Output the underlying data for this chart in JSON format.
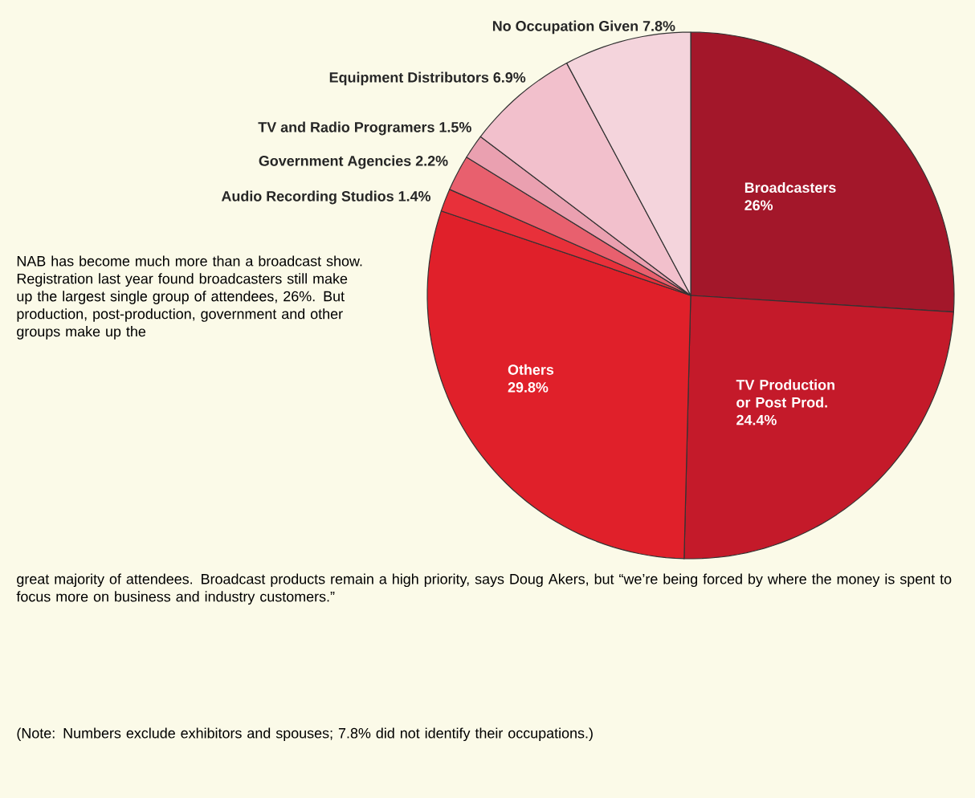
{
  "chart_data": {
    "type": "pie",
    "categories": [
      "Broadcasters",
      "TV Production or Post Prod.",
      "Others",
      "Audio Recording Studios",
      "Government Agencies",
      "TV and Radio Programers",
      "Equipment Distributors",
      "No Occupation Given"
    ],
    "values": [
      26,
      24.4,
      29.8,
      1.4,
      2.2,
      1.5,
      6.9,
      7.8
    ],
    "colors": [
      "#a3172a",
      "#c41a2a",
      "#e0202a",
      "#e8303a",
      "#e8606e",
      "#eaa0b0",
      "#f2c0cc",
      "#f4d4dc"
    ],
    "value_labels": [
      "26%",
      "24.4%",
      "29.8%",
      "1.4%",
      "2.2%",
      "1.5%",
      "6.9%",
      "7.8%"
    ],
    "annotations": [
      "NAB has become much more than a broadcast show. Registration last year found broadcasters still make up the largest single group of attendees, 26%. But production, post-production, government and other groups make up the",
      "great majority of attendees.  Broadcast products remain a high priority, says Doug Akers, but “we’re being forced by where the money is spent to focus more on business and industry customers.”",
      "(Note: Numbers exclude exhibitors and spouses; 7.8% did not identify their occupations.)"
    ]
  }
}
